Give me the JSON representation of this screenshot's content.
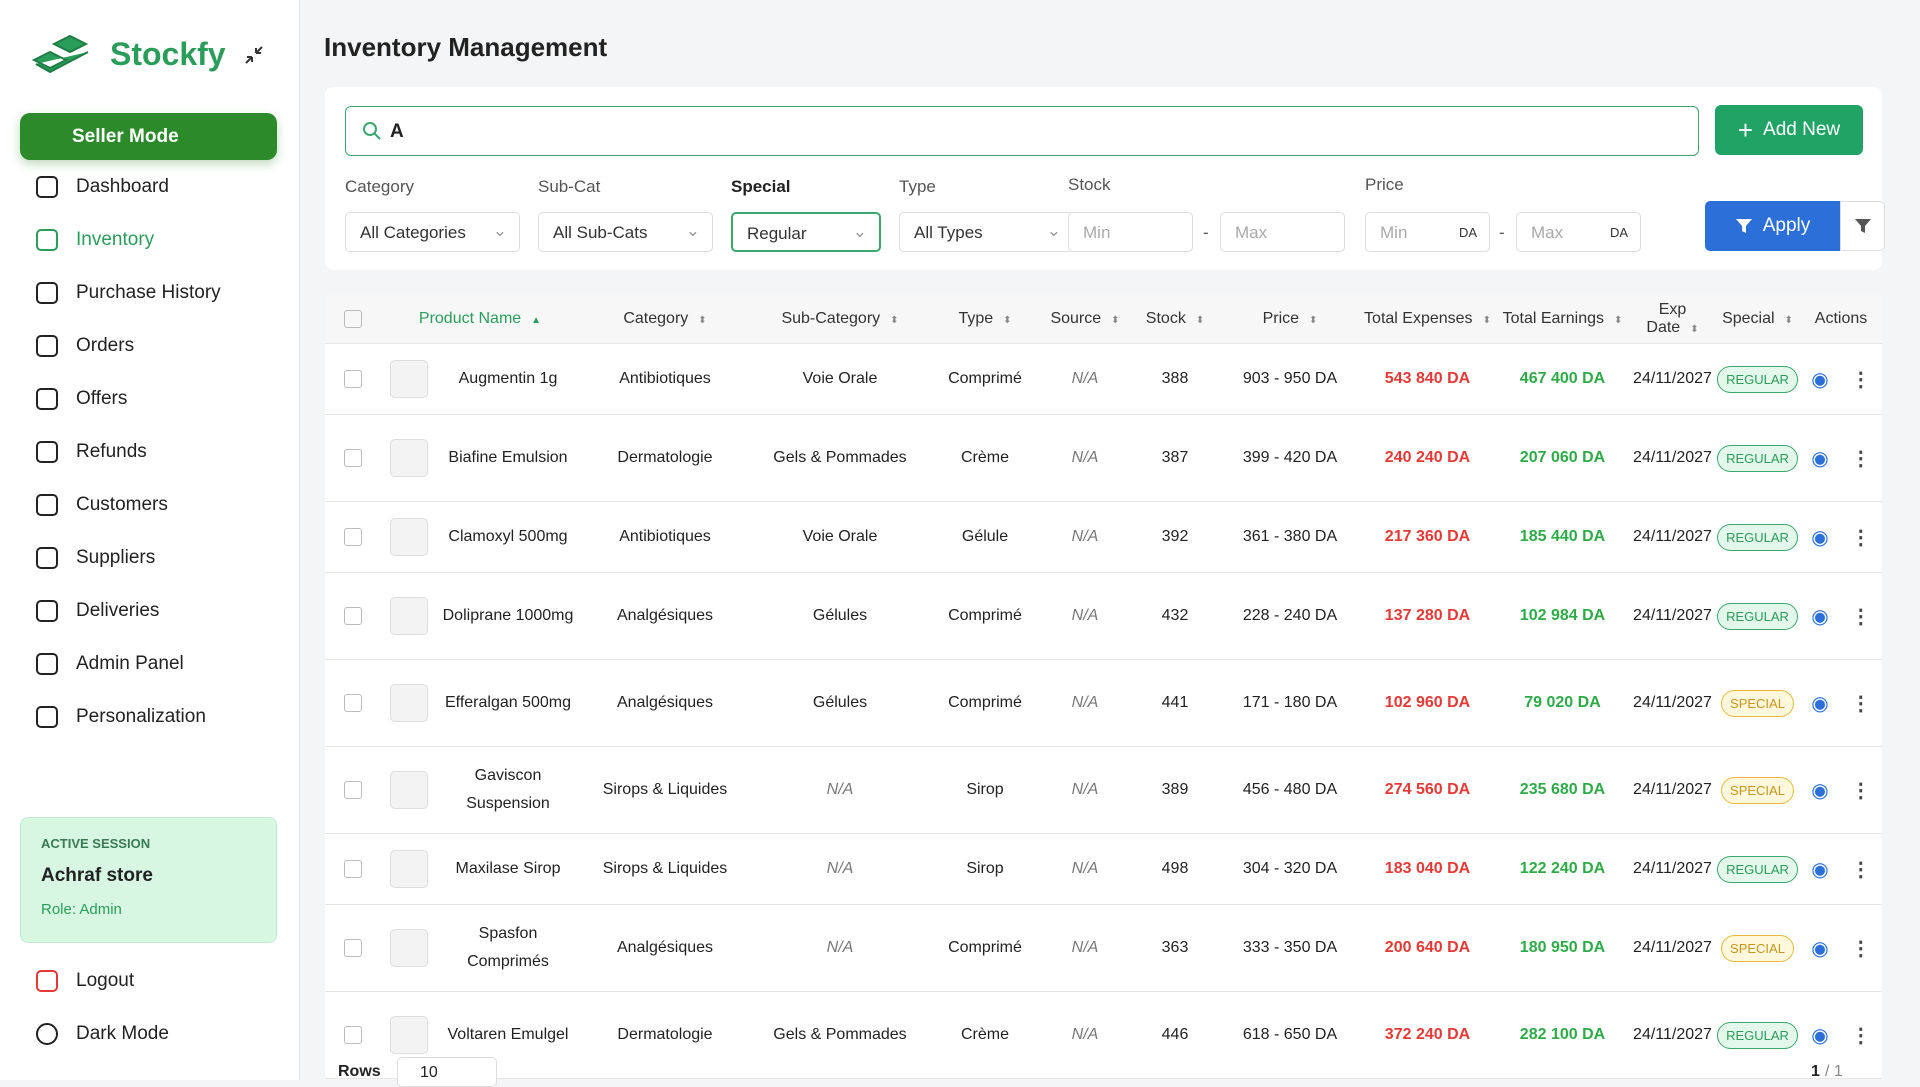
{
  "brand": "Stockfy",
  "sidebar": {
    "mode": "Seller Mode",
    "nav": [
      "Dashboard",
      "Inventory",
      "Purchase History",
      "Orders",
      "Offers",
      "Refunds",
      "Customers",
      "Suppliers",
      "Deliveries",
      "Admin Panel",
      "Personalization"
    ],
    "session": {
      "label": "ACTIVE SESSION",
      "store": "Achraf store",
      "role": "Role: Admin"
    },
    "bottom": [
      "Logout",
      "Dark Mode"
    ]
  },
  "header": {
    "title": "Inventory Management"
  },
  "search": {
    "value": "A",
    "button": "Add New"
  },
  "filters": {
    "selects": [
      {
        "label": "Category",
        "value": "All Categories"
      },
      {
        "label": "Sub-Cat",
        "value": "All Sub-Cats"
      },
      {
        "label": "Special",
        "value": "Regular"
      },
      {
        "label": "Type",
        "value": "All Types"
      }
    ],
    "stock": {
      "label": "Stock",
      "min": "Min",
      "max": "Max"
    },
    "price": {
      "label": "Price",
      "min": "Min",
      "max": "Max",
      "unit": "DA"
    },
    "separator": "-",
    "apply": "Apply"
  },
  "table": {
    "columns": [
      "Product Name",
      "Category",
      "Sub-Category",
      "Type",
      "Source",
      "Stock",
      "Price",
      "Total Expenses",
      "Total Earnings",
      "Exp Date",
      "Special",
      "Actions"
    ],
    "rows": [
      [
        "Augmentin 1g",
        "Antibiotiques",
        "Voie Orale",
        "Comprimé",
        "N/A",
        388,
        "903 - 950 DA",
        "543 840 DA",
        "467 400 DA",
        "24/11/2027",
        "REGULAR"
      ],
      [
        "Biafine Emulsion",
        "Dermatologie",
        "Gels & Pommades",
        "Crème",
        "N/A",
        387,
        "399 - 420 DA",
        "240 240 DA",
        "207 060 DA",
        "24/11/2027",
        "REGULAR"
      ],
      [
        "Clamoxyl 500mg",
        "Antibiotiques",
        "Voie Orale",
        "Gélule",
        "N/A",
        392,
        "361 - 380 DA",
        "217 360 DA",
        "185 440 DA",
        "24/11/2027",
        "REGULAR"
      ],
      [
        "Doliprane 1000mg",
        "Analgésiques",
        "Gélules",
        "Comprimé",
        "N/A",
        432,
        "228 - 240 DA",
        "137 280 DA",
        "102 984 DA",
        "24/11/2027",
        "REGULAR"
      ],
      [
        "Efferalgan 500mg",
        "Analgésiques",
        "Gélules",
        "Comprimé",
        "N/A",
        441,
        "171 - 180 DA",
        "102 960 DA",
        "79 020 DA",
        "24/11/2027",
        "SPECIAL"
      ],
      [
        "Gaviscon Suspension",
        "Sirops & Liquides",
        "N/A",
        "Sirop",
        "N/A",
        389,
        "456 - 480 DA",
        "274 560 DA",
        "235 680 DA",
        "24/11/2027",
        "SPECIAL"
      ],
      [
        "Maxilase Sirop",
        "Sirops & Liquides",
        "N/A",
        "Sirop",
        "N/A",
        498,
        "304 - 320 DA",
        "183 040 DA",
        "122 240 DA",
        "24/11/2027",
        "REGULAR"
      ],
      [
        "Spasfon Comprimés",
        "Analgésiques",
        "N/A",
        "Comprimé",
        "N/A",
        363,
        "333 - 350 DA",
        "200 640 DA",
        "180 950 DA",
        "24/11/2027",
        "SPECIAL"
      ],
      [
        "Voltaren Emulgel",
        "Dermatologie",
        "Gels & Pommades",
        "Crème",
        "N/A",
        446,
        "618 - 650 DA",
        "372 240 DA",
        "282 100 DA",
        "24/11/2027",
        "REGULAR"
      ]
    ]
  },
  "pagination": {
    "rows_label": "Rows",
    "rows_value": "10",
    "page": "1",
    "total": "/ 1"
  }
}
